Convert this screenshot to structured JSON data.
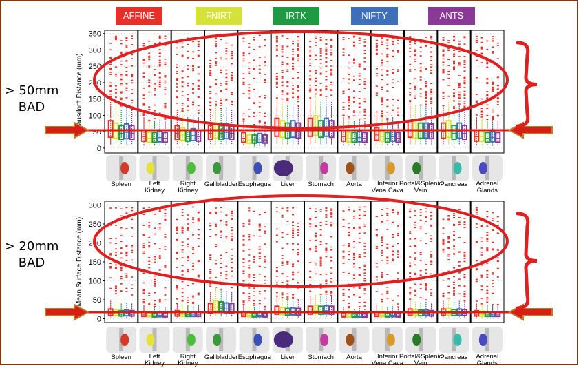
{
  "legend": [
    {
      "label": "AFFINE IRTK",
      "color": "#e8302a"
    },
    {
      "label": "FNIRT",
      "color": "#d6e23a"
    },
    {
      "label": "IRTK",
      "color": "#1f9a42"
    },
    {
      "label": "NIFTY",
      "color": "#3e6fb8"
    },
    {
      "label": "ANTS",
      "color": "#8a3a96"
    }
  ],
  "annotations": {
    "top_label_line1": "> 50mm",
    "top_label_line2": "BAD",
    "bottom_label_line1": "> 20mm",
    "bottom_label_line2": "BAD"
  },
  "colors": {
    "highlight": "#e02020",
    "arrow": "#d91c14",
    "arrow_outline": "#c07a2a",
    "outlier": "#e8302a",
    "frame": "#7a3a16"
  },
  "organ_icons": [
    "spleen-icon",
    "left-kidney-icon",
    "right-kidney-icon",
    "gallbladder-icon",
    "esophagus-icon",
    "liver-icon",
    "stomach-icon",
    "aorta-icon",
    "inferior-vena-cava-icon",
    "portal-splenic-vein-icon",
    "pancreas-icon",
    "adrenal-glands-icon"
  ],
  "organ_icon_colors": [
    "#d23a2a",
    "#e6e23a",
    "#4cbf3a",
    "#3a9a3a",
    "#3a4fb8",
    "#4a2a7a",
    "#c43aa0",
    "#a0501a",
    "#d89a2a",
    "#2a7a2a",
    "#3ab8a8",
    "#4a4ac0"
  ],
  "chart_data": [
    {
      "type": "box",
      "ylabel": "Hausdorff Distance (mm)",
      "ylim": [
        -15,
        360
      ],
      "yticks": [
        0,
        50,
        100,
        150,
        200,
        250,
        300,
        350
      ],
      "categories": [
        [
          "Spleen"
        ],
        [
          "Left",
          "Kidney"
        ],
        [
          "Right",
          "Kidney"
        ],
        [
          "Gallbladder"
        ],
        [
          "Esophagus"
        ],
        [
          "Liver"
        ],
        [
          "Stomach"
        ],
        [
          "Aorta"
        ],
        [
          "Inferior",
          "Vena Cava"
        ],
        [
          "Portal&Splenic",
          "Vein"
        ],
        [
          "Pancreas"
        ],
        [
          "Adrenal",
          "Glands"
        ]
      ],
      "threshold": 50,
      "series": [
        {
          "name": "AFFINE IRTK",
          "color": "#e8302a",
          "medians": [
            55,
            35,
            45,
            45,
            30,
            60,
            60,
            35,
            40,
            55,
            50,
            35
          ]
        },
        {
          "name": "FNIRT",
          "color": "#d6e23a",
          "medians": [
            50,
            30,
            40,
            50,
            25,
            55,
            65,
            30,
            35,
            50,
            55,
            35
          ]
        },
        {
          "name": "IRTK",
          "color": "#1f9a42",
          "medians": [
            45,
            30,
            35,
            45,
            25,
            50,
            55,
            30,
            30,
            50,
            45,
            30
          ]
        },
        {
          "name": "NIFTY",
          "color": "#3e6fb8",
          "medians": [
            48,
            32,
            38,
            48,
            28,
            55,
            60,
            32,
            35,
            50,
            50,
            32
          ]
        },
        {
          "name": "ANTS",
          "color": "#8a3a96",
          "medians": [
            45,
            30,
            35,
            45,
            25,
            50,
            55,
            30,
            30,
            48,
            45,
            30
          ]
        }
      ]
    },
    {
      "type": "box",
      "ylabel": "Mean Surface Distance (mm)",
      "ylim": [
        -10,
        310
      ],
      "yticks": [
        0,
        50,
        100,
        150,
        200,
        250,
        300
      ],
      "categories": [
        [
          "Spleen"
        ],
        [
          "Left",
          "Kidney"
        ],
        [
          "Right",
          "Kidney"
        ],
        [
          "Gallbladder"
        ],
        [
          "Esophagus"
        ],
        [
          "Liver"
        ],
        [
          "Stomach"
        ],
        [
          "Aorta"
        ],
        [
          "Inferior",
          "Vena Cava"
        ],
        [
          "Portal&Splenic",
          "Vein"
        ],
        [
          "Pancreas"
        ],
        [
          "Adrenal",
          "Glands"
        ]
      ],
      "threshold": 20,
      "series": [
        {
          "name": "AFFINE IRTK",
          "color": "#e8302a",
          "medians": [
            15,
            10,
            12,
            25,
            10,
            20,
            20,
            8,
            10,
            15,
            15,
            12
          ]
        },
        {
          "name": "FNIRT",
          "color": "#d6e23a",
          "medians": [
            14,
            9,
            11,
            30,
            9,
            18,
            22,
            7,
            9,
            14,
            16,
            11
          ]
        },
        {
          "name": "IRTK",
          "color": "#1f9a42",
          "medians": [
            12,
            8,
            10,
            28,
            8,
            16,
            20,
            6,
            8,
            13,
            14,
            10
          ]
        },
        {
          "name": "NIFTY",
          "color": "#3e6fb8",
          "medians": [
            13,
            9,
            10,
            26,
            9,
            17,
            21,
            7,
            9,
            14,
            15,
            10
          ]
        },
        {
          "name": "ANTS",
          "color": "#8a3a96",
          "medians": [
            12,
            8,
            10,
            25,
            8,
            16,
            20,
            6,
            8,
            12,
            14,
            10
          ]
        }
      ]
    }
  ]
}
